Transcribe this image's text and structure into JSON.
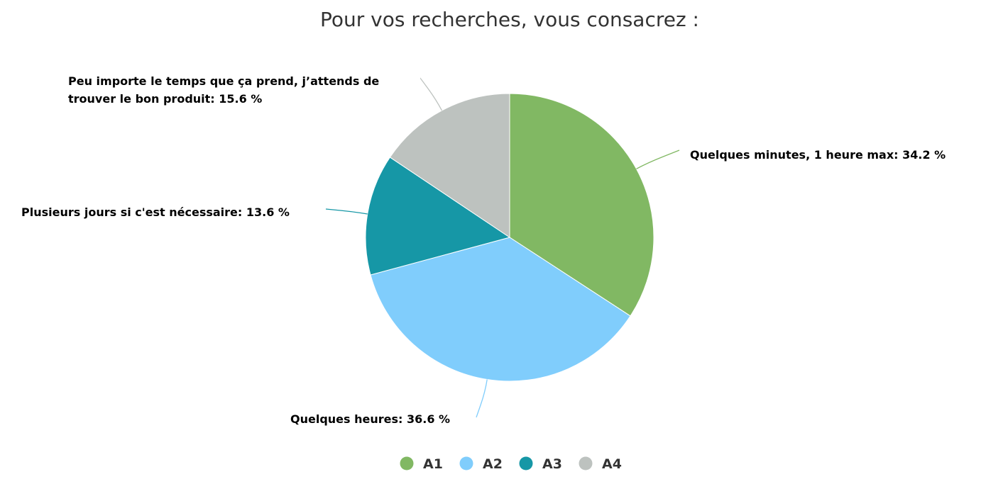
{
  "chart_data": {
    "type": "pie",
    "title": "Pour vos recherches, vous consacrez :",
    "slices": [
      {
        "legend": "A1",
        "label": "Quelques minutes, 1 heure max: 34.2 %",
        "value": 34.2,
        "color": "#81b863"
      },
      {
        "legend": "A2",
        "label": "Quelques heures: 36.6 %",
        "value": 36.6,
        "color": "#80cdfc"
      },
      {
        "legend": "A3",
        "label": "Plusieurs jours si c'est nécessaire: 13.6 %",
        "value": 13.6,
        "color": "#1697a6"
      },
      {
        "legend": "A4",
        "label_lines": [
          "Peu importe le temps que ça prend, j’attends de",
          "trouver le bon produit: 15.6 %"
        ],
        "value": 15.6,
        "color": "#bdc2bf"
      }
    ],
    "legend_position": "bottom"
  }
}
